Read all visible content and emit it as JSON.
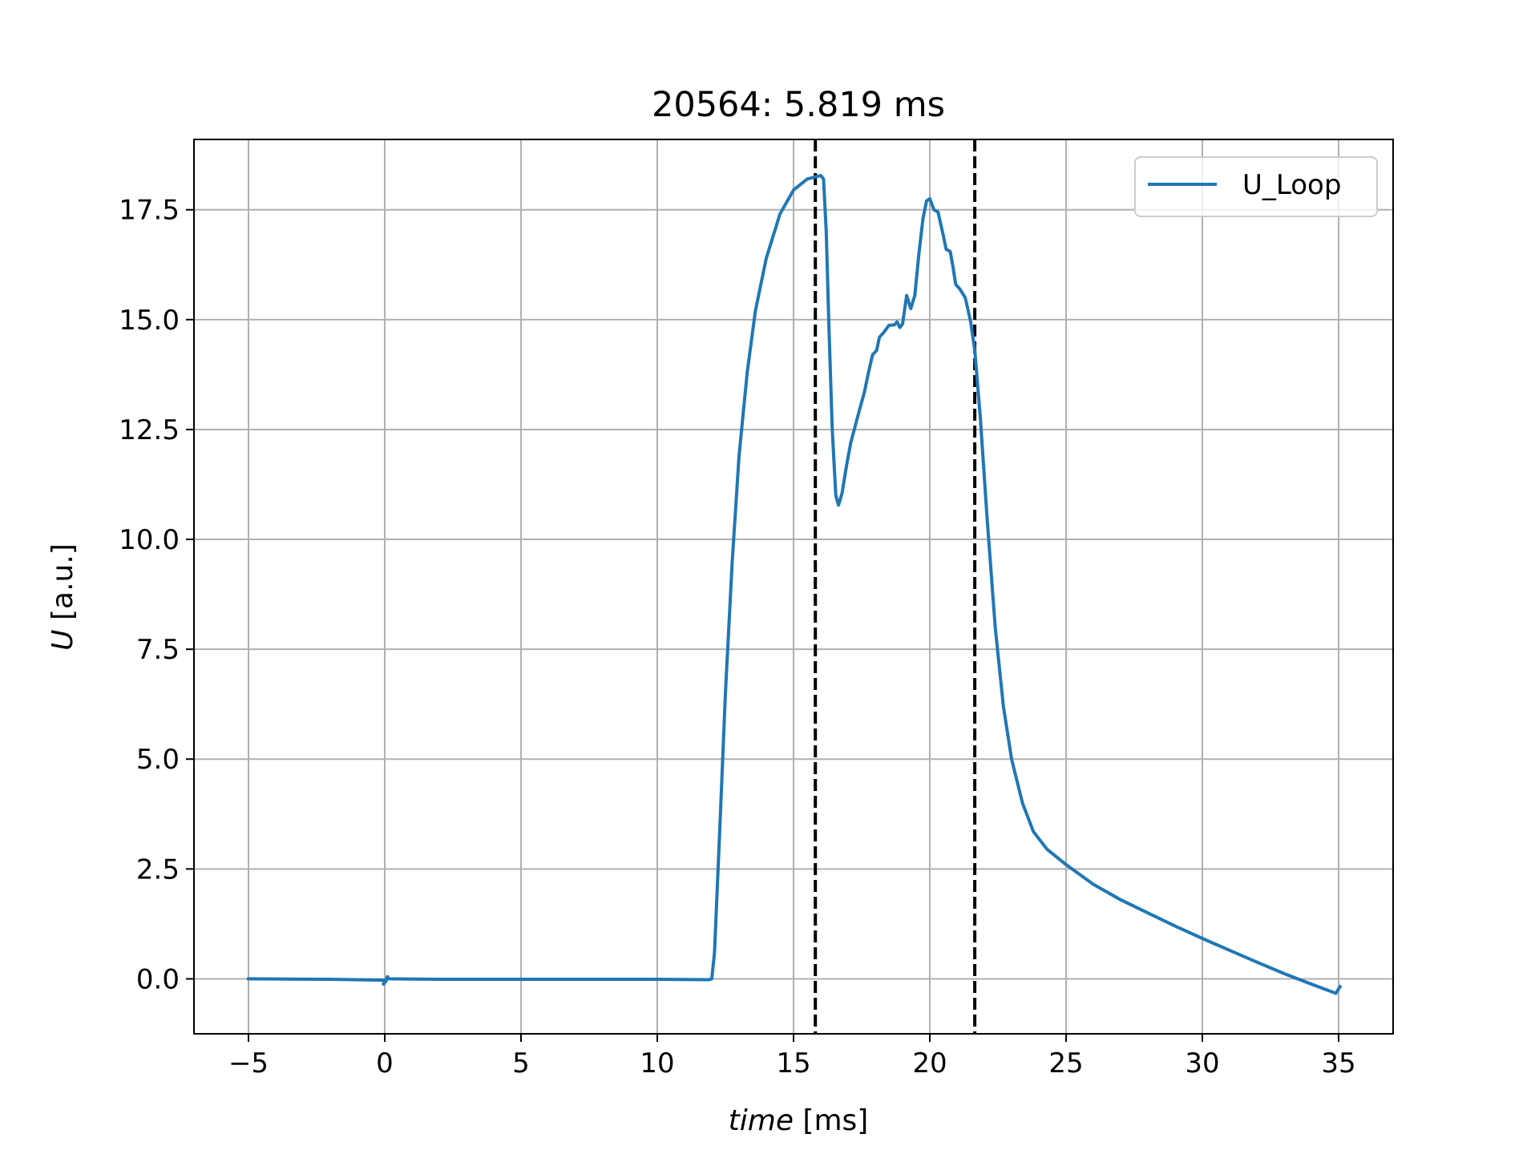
{
  "chart_data": {
    "type": "line",
    "title": "20564: 5.819 ms",
    "xlabel": {
      "var": "time",
      "unit": " [ms]"
    },
    "ylabel": {
      "var": "U",
      "unit": " [a.u.]"
    },
    "xlim": [
      -7,
      37
    ],
    "ylim": [
      -1.25,
      19.1
    ],
    "xticks": [
      -5,
      0,
      5,
      10,
      15,
      20,
      25,
      30,
      35
    ],
    "xtick_labels": [
      "−5",
      "0",
      "5",
      "10",
      "15",
      "20",
      "25",
      "30",
      "35"
    ],
    "yticks": [
      0.0,
      2.5,
      5.0,
      7.5,
      10.0,
      12.5,
      15.0,
      17.5
    ],
    "ytick_labels": [
      "0.0",
      "2.5",
      "5.0",
      "7.5",
      "10.0",
      "12.5",
      "15.0",
      "17.5"
    ],
    "grid": true,
    "legend_position": "upper right",
    "vlines": [
      {
        "x": 15.8,
        "style": "dashed",
        "color": "#000000"
      },
      {
        "x": 21.65,
        "style": "dashed",
        "color": "#000000"
      }
    ],
    "series": [
      {
        "name": "U_Loop",
        "color": "#1f77b4",
        "points": [
          [
            -5.0,
            0.0
          ],
          [
            -2.0,
            -0.01
          ],
          [
            0.0,
            -0.03
          ],
          [
            -0.05,
            -0.12
          ],
          [
            0.05,
            -0.05
          ],
          [
            0.1,
            0.05
          ],
          [
            0.15,
            0.0
          ],
          [
            2.0,
            -0.01
          ],
          [
            6.0,
            -0.01
          ],
          [
            10.0,
            -0.01
          ],
          [
            11.9,
            -0.02
          ],
          [
            12.0,
            0.0
          ],
          [
            12.1,
            0.6
          ],
          [
            12.3,
            3.5
          ],
          [
            12.5,
            6.5
          ],
          [
            12.75,
            9.5
          ],
          [
            13.0,
            11.9
          ],
          [
            13.3,
            13.8
          ],
          [
            13.6,
            15.2
          ],
          [
            14.0,
            16.4
          ],
          [
            14.5,
            17.4
          ],
          [
            15.0,
            17.95
          ],
          [
            15.5,
            18.2
          ],
          [
            16.0,
            18.28
          ],
          [
            16.1,
            18.2
          ],
          [
            16.2,
            17.0
          ],
          [
            16.3,
            14.8
          ],
          [
            16.42,
            12.5
          ],
          [
            16.55,
            11.0
          ],
          [
            16.65,
            10.78
          ],
          [
            16.78,
            11.05
          ],
          [
            16.95,
            11.7
          ],
          [
            17.1,
            12.2
          ],
          [
            17.4,
            12.9
          ],
          [
            17.6,
            13.35
          ],
          [
            17.75,
            13.8
          ],
          [
            17.9,
            14.2
          ],
          [
            18.05,
            14.3
          ],
          [
            18.15,
            14.6
          ],
          [
            18.3,
            14.7
          ],
          [
            18.5,
            14.87
          ],
          [
            18.7,
            14.88
          ],
          [
            18.8,
            14.95
          ],
          [
            18.9,
            14.82
          ],
          [
            19.0,
            14.9
          ],
          [
            19.15,
            15.55
          ],
          [
            19.3,
            15.25
          ],
          [
            19.45,
            15.55
          ],
          [
            19.6,
            16.5
          ],
          [
            19.75,
            17.3
          ],
          [
            19.88,
            17.7
          ],
          [
            20.0,
            17.75
          ],
          [
            20.15,
            17.5
          ],
          [
            20.3,
            17.45
          ],
          [
            20.5,
            16.9
          ],
          [
            20.6,
            16.6
          ],
          [
            20.75,
            16.55
          ],
          [
            20.85,
            16.2
          ],
          [
            20.95,
            15.8
          ],
          [
            21.1,
            15.7
          ],
          [
            21.3,
            15.5
          ],
          [
            21.5,
            14.95
          ],
          [
            21.65,
            14.3
          ],
          [
            21.85,
            12.8
          ],
          [
            22.1,
            10.5
          ],
          [
            22.4,
            8.0
          ],
          [
            22.7,
            6.2
          ],
          [
            23.0,
            5.0
          ],
          [
            23.4,
            4.0
          ],
          [
            23.8,
            3.35
          ],
          [
            24.3,
            2.95
          ],
          [
            25.0,
            2.6
          ],
          [
            26.0,
            2.15
          ],
          [
            27.0,
            1.8
          ],
          [
            28.0,
            1.5
          ],
          [
            29.0,
            1.2
          ],
          [
            30.0,
            0.92
          ],
          [
            31.0,
            0.65
          ],
          [
            32.0,
            0.38
          ],
          [
            33.0,
            0.12
          ],
          [
            34.0,
            -0.12
          ],
          [
            34.9,
            -0.33
          ],
          [
            35.05,
            -0.18
          ]
        ]
      }
    ]
  }
}
